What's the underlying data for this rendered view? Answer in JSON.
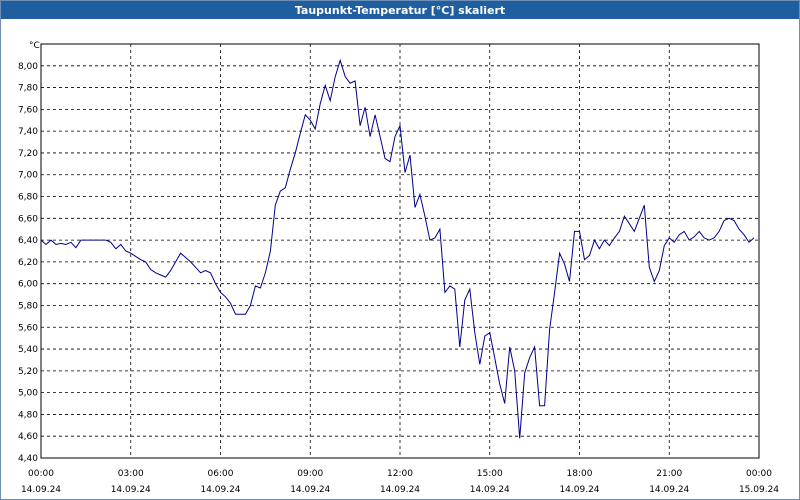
{
  "window": {
    "title": "Taupunkt-Temperatur [°C] skaliert"
  },
  "chart_data": {
    "type": "line",
    "title": "Taupunkt-Temperatur [°C] skaliert",
    "xlabel": "",
    "ylabel": "°C",
    "ylim": [
      4.4,
      8.2
    ],
    "yticks": [
      "8,00",
      "7,80",
      "7,60",
      "7,40",
      "7,20",
      "7,00",
      "6,80",
      "6,60",
      "6,40",
      "6,20",
      "6,00",
      "5,80",
      "5,60",
      "5,40",
      "5,20",
      "5,00",
      "4,80",
      "4,60",
      "4,40"
    ],
    "xlim": [
      "2024-09-14 00:00",
      "2024-09-15 00:00"
    ],
    "xticks": [
      {
        "time": "00:00",
        "date": "14.09.24"
      },
      {
        "time": "03:00",
        "date": "14.09.24"
      },
      {
        "time": "06:00",
        "date": "14.09.24"
      },
      {
        "time": "09:00",
        "date": "14.09.24"
      },
      {
        "time": "12:00",
        "date": "14.09.24"
      },
      {
        "time": "15:00",
        "date": "14.09.24"
      },
      {
        "time": "18:00",
        "date": "14.09.24"
      },
      {
        "time": "21:00",
        "date": "14.09.24"
      },
      {
        "time": "00:00",
        "date": "15.09.24"
      }
    ],
    "grid": true,
    "line_color": "#00008b",
    "series": [
      {
        "x": [
          "00:00",
          "00:10",
          "00:20",
          "00:30",
          "00:40",
          "00:50",
          "01:00",
          "01:10",
          "01:20",
          "01:30",
          "01:40",
          "01:50",
          "02:00",
          "02:10",
          "02:20",
          "02:30",
          "02:40",
          "02:50",
          "03:00",
          "03:10",
          "03:20",
          "03:30",
          "03:40",
          "03:50",
          "04:00",
          "04:10",
          "04:20",
          "04:30",
          "04:40",
          "04:50",
          "05:00",
          "05:10",
          "05:20",
          "05:30",
          "05:40",
          "05:50",
          "06:00",
          "06:10",
          "06:20",
          "06:30",
          "06:40",
          "06:50",
          "07:00",
          "07:10",
          "07:20",
          "07:30",
          "07:40",
          "07:50",
          "08:00",
          "08:10",
          "08:20",
          "08:30",
          "08:40",
          "08:50",
          "09:00",
          "09:10",
          "09:20",
          "09:30",
          "09:40",
          "09:50",
          "10:00",
          "10:10",
          "10:20",
          "10:30",
          "10:40",
          "10:50",
          "11:00",
          "11:10",
          "11:20",
          "11:30",
          "11:40",
          "11:50",
          "12:00",
          "12:10",
          "12:20",
          "12:30",
          "12:40",
          "12:50",
          "13:00",
          "13:10",
          "13:20",
          "13:30",
          "13:40",
          "13:50",
          "14:00",
          "14:10",
          "14:20",
          "14:30",
          "14:40",
          "14:50",
          "15:00",
          "15:10",
          "15:20",
          "15:30",
          "15:40",
          "15:50",
          "16:00",
          "16:10",
          "16:20",
          "16:30",
          "16:40",
          "16:50",
          "17:00",
          "17:10",
          "17:20",
          "17:30",
          "17:40",
          "17:50",
          "18:00",
          "18:10",
          "18:20",
          "18:30",
          "18:40",
          "18:50",
          "19:00",
          "19:10",
          "19:20",
          "19:30",
          "19:40",
          "19:50",
          "20:00",
          "20:10",
          "20:20",
          "20:30",
          "20:40",
          "20:50",
          "21:00",
          "21:10",
          "21:20",
          "21:30",
          "21:40",
          "21:50",
          "22:00",
          "22:10",
          "22:20",
          "22:30",
          "22:40",
          "22:50",
          "23:00",
          "23:10",
          "23:20",
          "23:30",
          "23:40",
          "23:50"
        ],
        "values": [
          6.4,
          6.36,
          6.4,
          6.36,
          6.37,
          6.36,
          6.38,
          6.33,
          6.4,
          6.4,
          6.4,
          6.4,
          6.4,
          6.4,
          6.38,
          6.32,
          6.36,
          6.3,
          6.28,
          6.25,
          6.22,
          6.2,
          6.13,
          6.1,
          6.08,
          6.06,
          6.12,
          6.2,
          6.28,
          6.24,
          6.2,
          6.15,
          6.1,
          6.12,
          6.1,
          6.0,
          5.92,
          5.88,
          5.82,
          5.72,
          5.72,
          5.72,
          5.8,
          5.98,
          5.96,
          6.1,
          6.3,
          6.72,
          6.85,
          6.88,
          7.05,
          7.2,
          7.38,
          7.55,
          7.5,
          7.42,
          7.65,
          7.82,
          7.68,
          7.9,
          8.05,
          7.9,
          7.84,
          7.86,
          7.45,
          7.62,
          7.35,
          7.55,
          7.35,
          7.15,
          7.12,
          7.35,
          7.45,
          7.02,
          7.18,
          6.7,
          6.82,
          6.62,
          6.4,
          6.42,
          6.5,
          5.92,
          5.98,
          5.95,
          5.42,
          5.85,
          5.95,
          5.55,
          5.26,
          5.52,
          5.55,
          5.32,
          5.08,
          4.9,
          5.42,
          5.2,
          4.58,
          5.18,
          5.32,
          5.42,
          4.88,
          4.88,
          5.58,
          5.92,
          6.28,
          6.18,
          6.02,
          6.48,
          6.48,
          6.22,
          6.26,
          6.4,
          6.32,
          6.4,
          6.35,
          6.42,
          6.48,
          6.62,
          6.55,
          6.48,
          6.6,
          6.72,
          6.15,
          6.02,
          6.12,
          6.35,
          6.42,
          6.38,
          6.45,
          6.48,
          6.4,
          6.43,
          6.48,
          6.42,
          6.4,
          6.42,
          6.48,
          6.58,
          6.6,
          6.58,
          6.5,
          6.45,
          6.38,
          6.42
        ]
      }
    ]
  }
}
